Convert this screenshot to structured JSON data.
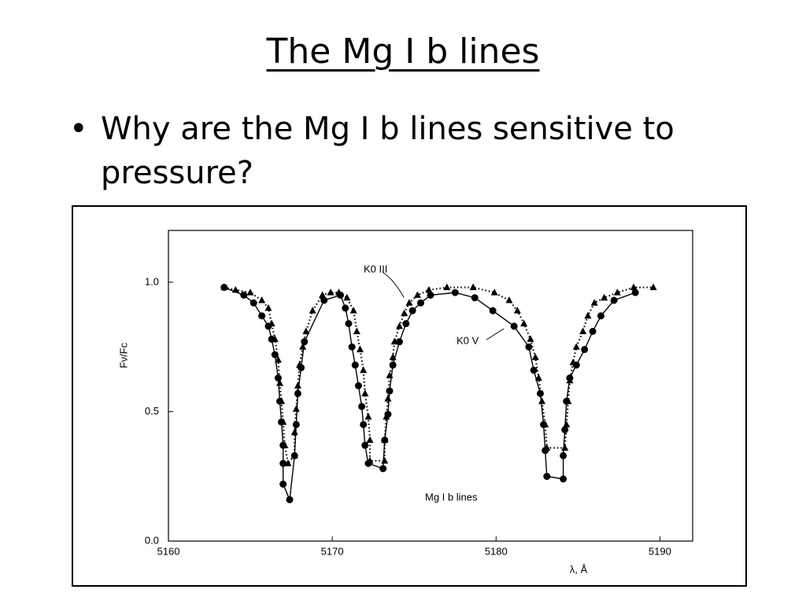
{
  "slide": {
    "title": "The Mg I b lines",
    "bullets": [
      "Why are the Mg I b lines sensitive to pressure?"
    ]
  },
  "chart_data": {
    "type": "line",
    "x_label": "λ, Å",
    "y_label": "Fν/Fc",
    "annotations": [
      "K0 III",
      "K0 V",
      "Mg I  b lines"
    ],
    "xlim": [
      5160,
      5192
    ],
    "xticks": [
      5160,
      5170,
      5180,
      5190
    ],
    "ylim": [
      0,
      1.2
    ],
    "yticks": [
      {
        "value": 0,
        "label": "0.0"
      },
      {
        "value": 0.5,
        "label": "0.5"
      },
      {
        "value": 1,
        "label": "1.0"
      }
    ],
    "series": [
      {
        "name": "K0 III",
        "color": "#000000",
        "marker": "triangle",
        "line_style": "dotted",
        "x": [
          5163.4,
          5164.1,
          5165.0,
          5165.7,
          5166.1,
          5166.3,
          5166.5,
          5166.7,
          5166.8,
          5166.9,
          5167.0,
          5167.1,
          5167.3,
          5167.7,
          5167.7,
          5167.8,
          5167.9,
          5168.0,
          5168.2,
          5168.4,
          5168.8,
          5169.4,
          5169.9,
          5170.4,
          5170.9,
          5171.3,
          5171.5,
          5171.7,
          5171.9,
          5172.0,
          5172.2,
          5172.3,
          5172.3,
          5173.2,
          5173.2,
          5173.3,
          5173.4,
          5173.5,
          5173.7,
          5173.8,
          5174.1,
          5174.4,
          5174.7,
          5175.2,
          5175.9,
          5177.0,
          5178.6,
          5179.9,
          5180.8,
          5181.3,
          5181.7,
          5182.1,
          5182.4,
          5182.6,
          5182.8,
          5183.0,
          5183.1,
          5184.2,
          5184.3,
          5184.4,
          5184.5,
          5184.7,
          5184.9,
          5185.3,
          5185.6,
          5186.0,
          5186.6,
          5187.4,
          5188.4,
          5189.6
        ],
        "values": [
          0.98,
          0.97,
          0.96,
          0.93,
          0.9,
          0.84,
          0.78,
          0.7,
          0.61,
          0.54,
          0.46,
          0.37,
          0.3,
          0.33,
          0.42,
          0.51,
          0.6,
          0.68,
          0.75,
          0.81,
          0.89,
          0.95,
          0.96,
          0.96,
          0.94,
          0.89,
          0.81,
          0.74,
          0.66,
          0.57,
          0.48,
          0.39,
          0.31,
          0.31,
          0.39,
          0.48,
          0.55,
          0.64,
          0.71,
          0.77,
          0.83,
          0.88,
          0.92,
          0.95,
          0.97,
          0.98,
          0.98,
          0.96,
          0.93,
          0.89,
          0.84,
          0.78,
          0.71,
          0.63,
          0.54,
          0.45,
          0.36,
          0.36,
          0.45,
          0.54,
          0.62,
          0.69,
          0.75,
          0.81,
          0.87,
          0.92,
          0.94,
          0.96,
          0.98,
          0.98
        ]
      },
      {
        "name": "K0 V",
        "color": "#000000",
        "marker": "circle",
        "line_style": "solid",
        "x": [
          5163.4,
          5164.6,
          5165.2,
          5165.7,
          5166.1,
          5166.3,
          5166.5,
          5166.7,
          5166.8,
          5166.9,
          5167.0,
          5167.0,
          5167.0,
          5167.4,
          5167.7,
          5167.8,
          5167.9,
          5168.1,
          5168.3,
          5169.5,
          5170.5,
          5170.8,
          5171.0,
          5171.2,
          5171.4,
          5171.6,
          5171.8,
          5171.9,
          5172.0,
          5172.2,
          5173.1,
          5173.2,
          5173.4,
          5173.5,
          5173.7,
          5174.1,
          5174.5,
          5174.9,
          5175.4,
          5176.0,
          5177.5,
          5178.7,
          5179.8,
          5181.1,
          5182.0,
          5182.3,
          5182.7,
          5182.9,
          5183.0,
          5183.1,
          5184.1,
          5184.1,
          5184.2,
          5184.3,
          5184.5,
          5184.9,
          5185.4,
          5185.9,
          5186.4,
          5187.2,
          5188.5
        ],
        "values": [
          0.98,
          0.95,
          0.92,
          0.87,
          0.83,
          0.78,
          0.72,
          0.63,
          0.54,
          0.46,
          0.37,
          0.3,
          0.22,
          0.16,
          0.33,
          0.45,
          0.57,
          0.67,
          0.77,
          0.93,
          0.95,
          0.9,
          0.84,
          0.75,
          0.68,
          0.6,
          0.52,
          0.45,
          0.37,
          0.3,
          0.28,
          0.39,
          0.49,
          0.58,
          0.68,
          0.77,
          0.84,
          0.89,
          0.92,
          0.95,
          0.96,
          0.94,
          0.89,
          0.83,
          0.75,
          0.66,
          0.57,
          0.45,
          0.35,
          0.25,
          0.24,
          0.33,
          0.43,
          0.54,
          0.63,
          0.68,
          0.74,
          0.81,
          0.87,
          0.93,
          0.96
        ]
      }
    ]
  }
}
